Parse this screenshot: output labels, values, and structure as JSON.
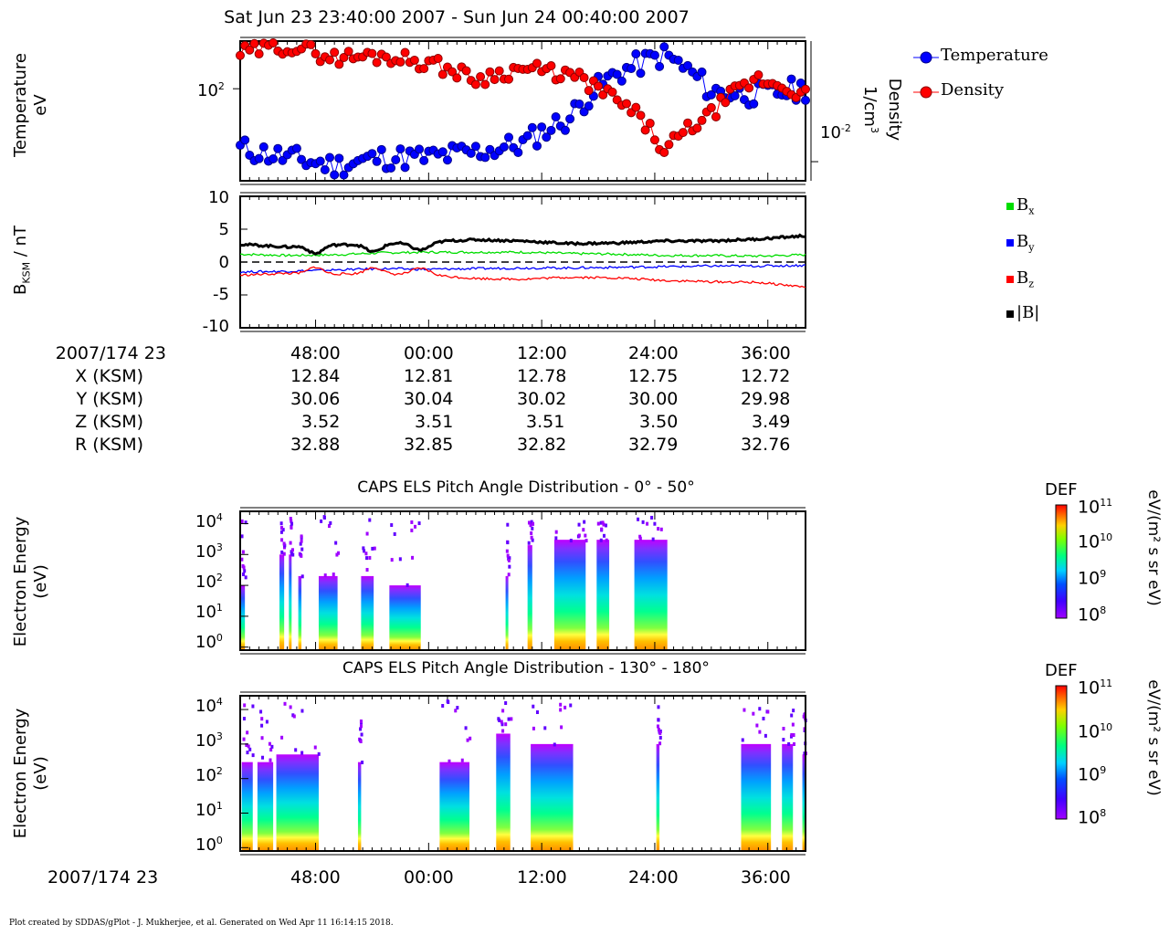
{
  "header": {
    "title": "Sat Jun 23 23:40:00 2007 - Sun Jun 24 00:40:00 2007"
  },
  "panel1": {
    "ylabel_left_line1": "Temperature",
    "ylabel_left_line2": "eV",
    "ylabel_right_line1": "Density",
    "ylabel_right_line2": "1/cm",
    "ylabel_right_sup": "3",
    "left_tick_label": "10",
    "left_tick_exp": "2",
    "right_tick_label": "10",
    "right_tick_exp": "-2",
    "legend": [
      {
        "name": "Temperature",
        "color": "#0000ff"
      },
      {
        "name": "Density",
        "color": "#ff0000"
      }
    ]
  },
  "panel2": {
    "ylabel": "B",
    "ylabel_sub": "KSM",
    "ylabel_unit": " / nT",
    "yticks": [
      "10",
      "5",
      "0",
      "-5",
      "-10"
    ],
    "legend": [
      {
        "base": "B",
        "sub": "x",
        "color": "#00dd00"
      },
      {
        "base": "B",
        "sub": "y",
        "color": "#0000ff"
      },
      {
        "base": "B",
        "sub": "z",
        "color": "#ff0000"
      },
      {
        "base": "|B|",
        "sub": "",
        "color": "#000000"
      }
    ]
  },
  "ephemeris": {
    "rows": [
      {
        "label": "2007/174 23",
        "values": [
          "48:00",
          "00:00",
          "12:00",
          "24:00",
          "36:00"
        ]
      },
      {
        "label": "X (KSM)",
        "values": [
          "12.84",
          "12.81",
          "12.78",
          "12.75",
          "12.72"
        ]
      },
      {
        "label": "Y (KSM)",
        "values": [
          "30.06",
          "30.04",
          "30.02",
          "30.00",
          "29.98"
        ]
      },
      {
        "label": "Z (KSM)",
        "values": [
          "3.52",
          "3.51",
          "3.51",
          "3.50",
          "3.49"
        ]
      },
      {
        "label": "R (KSM)",
        "values": [
          "32.88",
          "32.85",
          "32.82",
          "32.79",
          "32.76"
        ]
      }
    ]
  },
  "spectrogram_common": {
    "ylabel_line1": "Electron Energy",
    "ylabel_line2": "(eV)",
    "cbar_title": "DEF",
    "cbar_unit": "eV/(m² s sr eV)",
    "cbar_ticks": [
      {
        "base": "10",
        "exp": "11"
      },
      {
        "base": "10",
        "exp": "10"
      },
      {
        "base": "10",
        "exp": "9"
      },
      {
        "base": "10",
        "exp": "8"
      }
    ],
    "yticks": [
      {
        "base": "10",
        "exp": "4"
      },
      {
        "base": "10",
        "exp": "3"
      },
      {
        "base": "10",
        "exp": "2"
      },
      {
        "base": "10",
        "exp": "1"
      },
      {
        "base": "10",
        "exp": "0"
      }
    ]
  },
  "panel3": {
    "title": "CAPS ELS Pitch Angle Distribution - 0° - 50°"
  },
  "panel4": {
    "title": "CAPS ELS Pitch Angle Distribution - 130° - 180°"
  },
  "bottom_axis": {
    "label": "2007/174 23",
    "ticks": [
      "48:00",
      "00:00",
      "12:00",
      "24:00",
      "36:00"
    ]
  },
  "footer": {
    "text": "Plot created by SDDAS/gPlot - J. Mukherjee, et al.  Generated on Wed Apr 11 16:14:15 2018."
  },
  "chart_data": [
    {
      "type": "line",
      "title": "",
      "xlabel": "",
      "x": [
        "23:40",
        "23:45",
        "23:50",
        "23:55",
        "00:00",
        "00:05",
        "00:10",
        "00:15",
        "00:20",
        "00:25",
        "00:30",
        "00:35",
        "00:40"
      ],
      "series": [
        {
          "name": "Temperature",
          "axis": "left",
          "unit": "eV",
          "values": [
            35,
            30,
            26,
            30,
            30,
            33,
            38,
            60,
            130,
            180,
            95,
            90,
            100
          ]
        },
        {
          "name": "Density",
          "axis": "right",
          "unit": "1/cm3",
          "values": [
            0.18,
            0.22,
            0.16,
            0.17,
            0.14,
            0.09,
            0.12,
            0.1,
            0.05,
            0.012,
            0.035,
            0.09,
            0.06
          ]
        }
      ],
      "ylabel": "Temperature eV",
      "y2label": "Density 1/cm3",
      "yscale": "log",
      "grid": false,
      "legend_position": "right"
    },
    {
      "type": "line",
      "title": "",
      "xlabel": "",
      "x": [
        "23:40",
        "23:45",
        "23:50",
        "23:55",
        "00:00",
        "00:05",
        "00:10",
        "00:15",
        "00:20",
        "00:25",
        "00:30",
        "00:35",
        "00:40"
      ],
      "series": [
        {
          "name": "Bx",
          "values": [
            1.2,
            1.0,
            1.1,
            1.4,
            1.5,
            1.5,
            1.5,
            1.3,
            1.2,
            1.0,
            1.0,
            0.9,
            1.1
          ]
        },
        {
          "name": "By",
          "values": [
            -1.5,
            -1.4,
            -1.2,
            -1.0,
            -1.1,
            -1.0,
            -0.9,
            -0.9,
            -0.8,
            -0.7,
            -0.6,
            -0.6,
            -0.5
          ]
        },
        {
          "name": "Bz",
          "values": [
            -2.0,
            -1.7,
            -1.8,
            -1.8,
            -2.0,
            -2.5,
            -2.6,
            -2.3,
            -2.4,
            -2.8,
            -3.0,
            -3.1,
            -3.8
          ]
        },
        {
          "name": "|B|",
          "values": [
            2.7,
            2.3,
            2.6,
            2.8,
            3.1,
            3.4,
            3.2,
            2.8,
            2.9,
            3.2,
            3.2,
            3.5,
            4.0
          ]
        }
      ],
      "ylabel": "B_KSM / nT",
      "ylim": [
        -10,
        10
      ],
      "grid": false,
      "legend_position": "right"
    },
    {
      "type": "heatmap",
      "title": "CAPS ELS Pitch Angle Distribution - 0° - 50°",
      "xlabel": "",
      "ylabel": "Electron Energy (eV)",
      "yscale": "log",
      "zlabel": "DEF eV/(m² s sr eV)",
      "zlim": [
        100000000.0,
        100000000000.0
      ],
      "active_intervals": [
        [
          "23:40",
          "23:40:30"
        ],
        [
          "23:44:10",
          "23:44:40"
        ],
        [
          "23:45:10",
          "23:45:20"
        ],
        [
          "23:46:10",
          "23:46:30"
        ],
        [
          "23:48:20",
          "23:50:20"
        ],
        [
          "23:52:50",
          "23:54:10"
        ],
        [
          "23:55:50",
          "23:59:10"
        ],
        [
          "00:08:10",
          "00:08:25"
        ],
        [
          "00:10:30",
          "00:11:00"
        ],
        [
          "00:13:20",
          "00:16:40"
        ],
        [
          "00:17:50",
          "00:19:10"
        ],
        [
          "00:21:50",
          "00:25:20"
        ]
      ],
      "max_energy_eV": [
        100,
        1000,
        1000,
        200,
        200,
        200,
        100,
        200,
        2000,
        3000,
        3000,
        3000
      ]
    },
    {
      "type": "heatmap",
      "title": "CAPS ELS Pitch Angle Distribution - 130° - 180°",
      "xlabel": "",
      "ylabel": "Electron Energy (eV)",
      "yscale": "log",
      "zlabel": "DEF eV/(m² s sr eV)",
      "zlim": [
        100000000.0,
        100000000000.0
      ],
      "active_intervals": [
        [
          "23:40:10",
          "23:41:20"
        ],
        [
          "23:41:50",
          "23:43:30"
        ],
        [
          "23:43:50",
          "23:48:20"
        ],
        [
          "23:52:30",
          "23:52:50"
        ],
        [
          "00:01:10",
          "00:04:20"
        ],
        [
          "00:07:10",
          "00:08:40"
        ],
        [
          "00:10:50",
          "00:15:20"
        ],
        [
          "00:24:10",
          "00:24:30"
        ],
        [
          "00:33:10",
          "00:36:20"
        ],
        [
          "00:37:30",
          "00:38:40"
        ],
        [
          "00:39:40",
          "00:40:00"
        ]
      ],
      "max_energy_eV": [
        300,
        300,
        500,
        300,
        300,
        2000,
        1000,
        1000,
        1000,
        1000,
        500
      ]
    }
  ]
}
